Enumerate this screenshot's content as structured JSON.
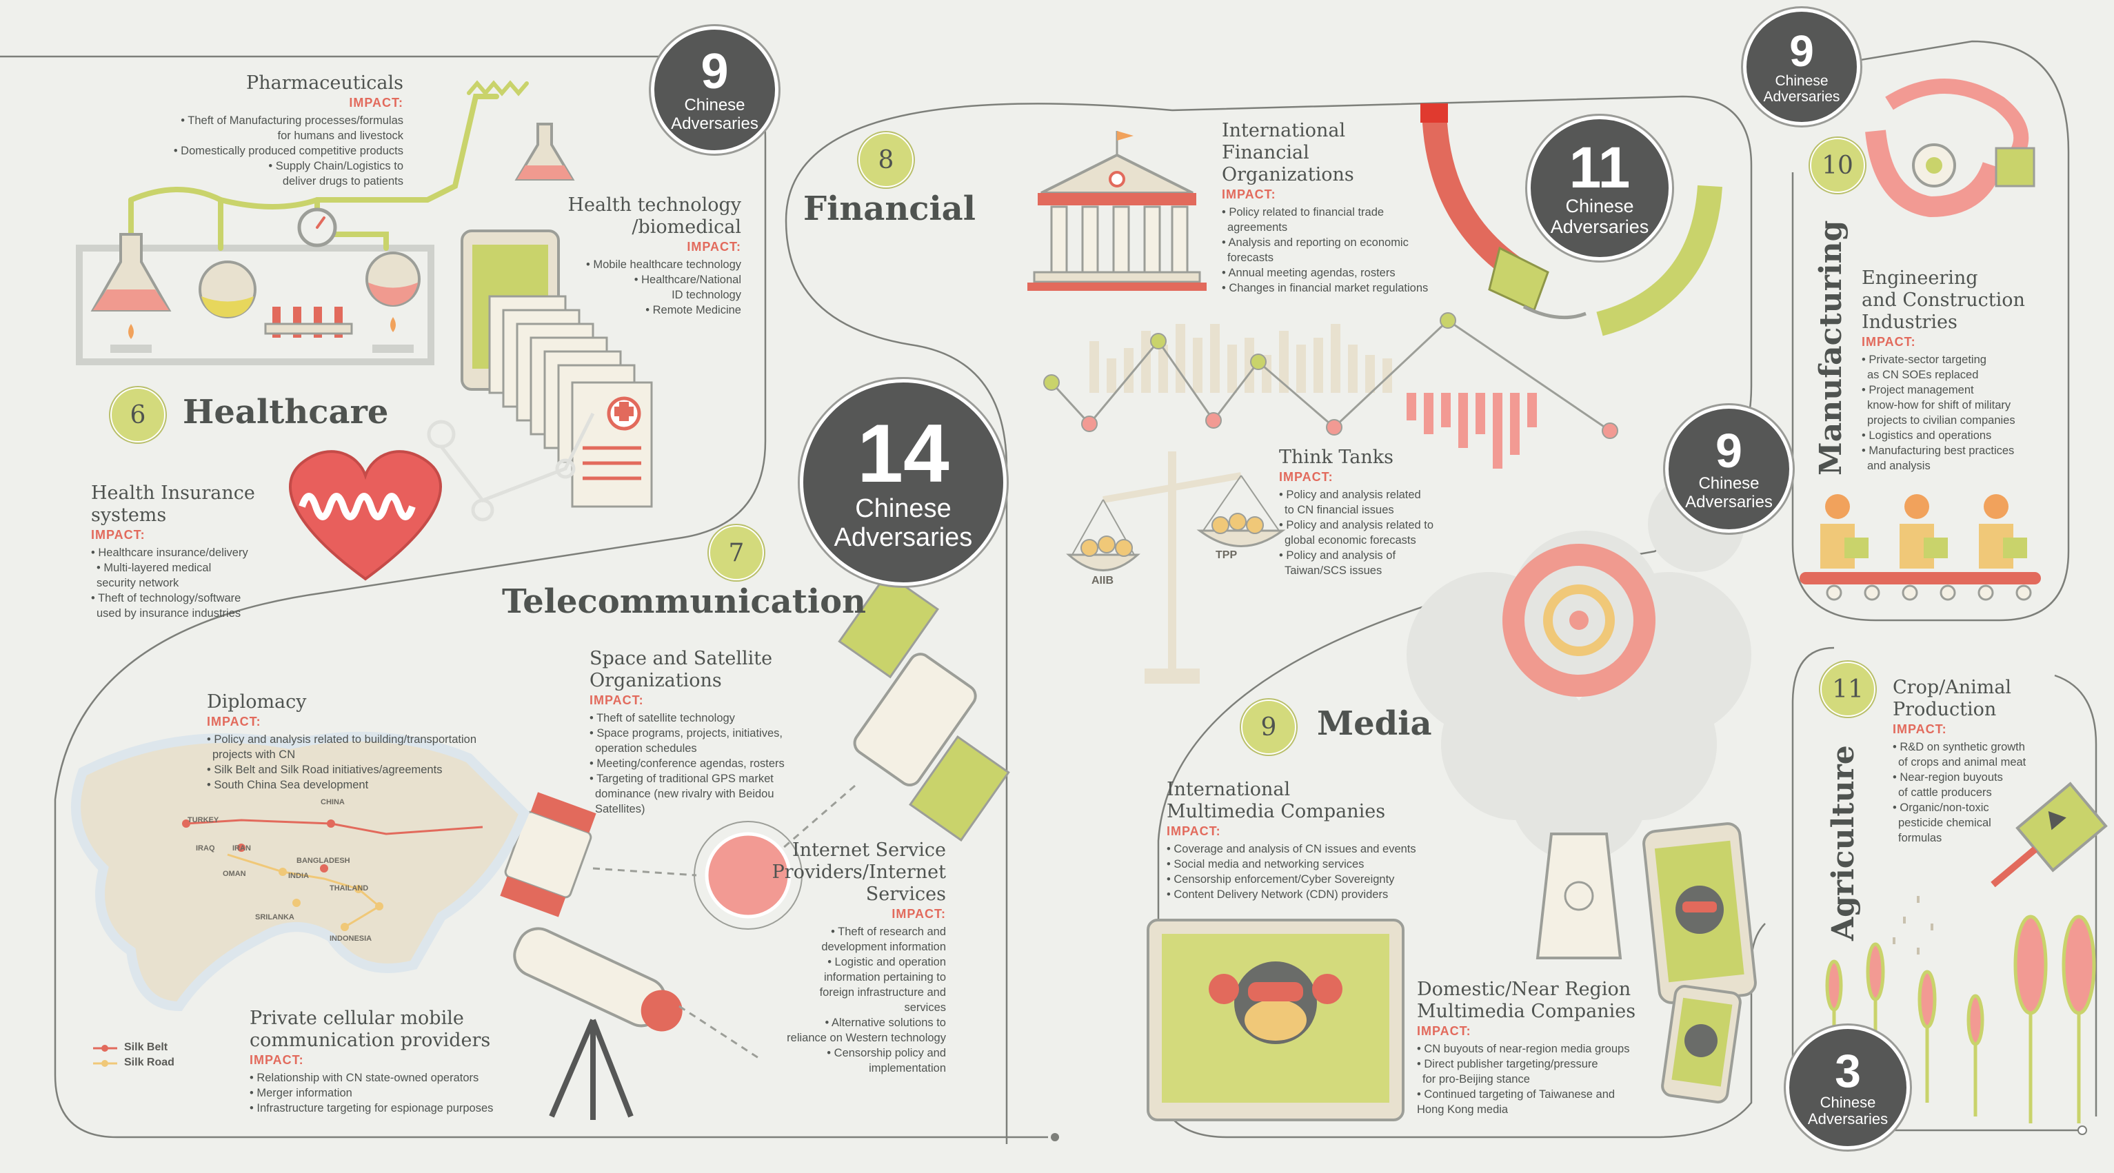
{
  "colors": {
    "background": "#eff0ec",
    "ink": "#4f5350",
    "accent_red": "#e26a5c",
    "accent_green": "#c9d36b",
    "dark": "#565756",
    "beige": "#e8e1cf"
  },
  "adversaries_label": [
    "Chinese",
    "Adversaries"
  ],
  "healthcare": {
    "section": "Healthcare",
    "number": "6",
    "pharma": {
      "title": "Pharmaceuticals",
      "impact": "IMPACT:",
      "items": [
        "• Theft of Manufacturing processes/formulas",
        "for humans and livestock",
        "• Domestically produced competitive products",
        "• Supply Chain/Logistics to",
        "deliver drugs to patients"
      ]
    },
    "healthtech": {
      "title": [
        "Health technology",
        "/biomedical"
      ],
      "impact": "IMPACT:",
      "items": [
        "• Mobile healthcare technology",
        "• Healthcare/National",
        "ID technology",
        "• Remote Medicine"
      ]
    },
    "insurance": {
      "title": [
        "Health Insurance",
        "systems"
      ],
      "impact": "IMPACT:",
      "items": [
        "• Healthcare insurance/delivery",
        "• Multi-layered medical",
        "security network",
        "• Theft of technology/software",
        "used by insurance industries"
      ]
    },
    "adversaries": "9"
  },
  "telecom": {
    "section": "Telecommunication",
    "number": "7",
    "adversaries": "14",
    "diplomacy": {
      "title": "Diplomacy",
      "impact": "IMPACT:",
      "items": [
        "• Policy and analysis related to building/transportation",
        "projects with CN",
        "• Silk Belt and Silk Road initiatives/agreements",
        "• South China Sea development"
      ]
    },
    "space": {
      "title": [
        "Space and Satellite",
        "Organizations"
      ],
      "impact": "IMPACT:",
      "items": [
        "• Theft of satellite technology",
        "• Space programs, projects, initiatives,",
        "operation schedules",
        "• Meeting/conference agendas, rosters",
        "• Targeting of traditional GPS market",
        "dominance (new rivalry with Beidou",
        "Satellites)"
      ]
    },
    "isp": {
      "title": [
        "Internet Service",
        "Providers/Internet",
        "Services"
      ],
      "impact": "IMPACT:",
      "items": [
        "• Theft of research and",
        "development information",
        "• Logistic and operation",
        "information pertaining to",
        "foreign infrastructure and",
        "services",
        "• Alternative solutions to",
        "reliance on Western technology",
        "• Censorship policy and",
        "implementation"
      ]
    },
    "cellular": {
      "title": [
        "Private cellular mobile",
        "communication providers"
      ],
      "impact": "IMPACT:",
      "items": [
        "• Relationship with CN state-owned operators",
        "• Merger information",
        "• Infrastructure targeting for espionage purposes"
      ]
    },
    "map_labels": [
      "TURKEY",
      "CHINA",
      "IRAQ",
      "IRAN",
      "BANGLADESH",
      "OMAN",
      "INDIA",
      "THAILAND",
      "SRILANKA",
      "INDONESIA"
    ],
    "legend": [
      "Silk Belt",
      "Silk Road"
    ]
  },
  "financial": {
    "section": "Financial",
    "number": "8",
    "adversaries": "11",
    "ifo": {
      "title": [
        "International",
        "Financial",
        "Organizations"
      ],
      "impact": "IMPACT:",
      "items": [
        "• Policy related to financial trade",
        "agreements",
        "• Analysis and reporting on economic",
        "forecasts",
        "• Annual meeting agendas, rosters",
        "• Changes in financial market regulations"
      ]
    },
    "think": {
      "title": "Think Tanks",
      "impact": "IMPACT:",
      "items": [
        "• Policy and analysis related",
        "to CN financial issues",
        "• Policy and analysis related to",
        "global economic forecasts",
        "• Policy and analysis of",
        "Taiwan/SCS issues"
      ]
    },
    "scale_labels": [
      "AIIB",
      "TPP"
    ]
  },
  "media": {
    "section": "Media",
    "number": "9",
    "adversaries": "9",
    "intl": {
      "title": [
        "International",
        "Multimedia Companies"
      ],
      "impact": "IMPACT:",
      "items": [
        "• Coverage and analysis of CN issues and events",
        "• Social media and networking services",
        "• Censorship enforcement/Cyber Sovereignty",
        "• Content Delivery Network (CDN) providers"
      ]
    },
    "domestic": {
      "title": [
        "Domestic/Near Region",
        "Multimedia Companies"
      ],
      "impact": "IMPACT:",
      "items": [
        "• CN buyouts of near-region media groups",
        "• Direct publisher targeting/pressure",
        "for pro-Beijing stance",
        "• Continued targeting of Taiwanese and",
        "Hong Kong media"
      ]
    }
  },
  "manufacturing": {
    "section": "Manufacturing",
    "number": "10",
    "adversaries": "9",
    "eng": {
      "title": [
        "Engineering",
        "and Construction",
        "Industries"
      ],
      "impact": "IMPACT:",
      "items": [
        "• Private-sector targeting",
        "as CN SOEs replaced",
        "• Project management",
        "know-how for shift of military",
        "projects to civilian companies",
        "• Logistics and operations",
        "• Manufacturing best practices",
        "and analysis"
      ]
    }
  },
  "agriculture": {
    "section": "Agriculture",
    "number": "11",
    "adversaries": "3",
    "crop": {
      "title": [
        "Crop/Animal",
        "Production"
      ],
      "impact": "IMPACT:",
      "items": [
        "• R&D on synthetic growth",
        "of crops and animal meat",
        "• Near-region buyouts",
        "of cattle producers",
        "• Organic/non-toxic",
        "pesticide chemical",
        "formulas"
      ]
    }
  }
}
